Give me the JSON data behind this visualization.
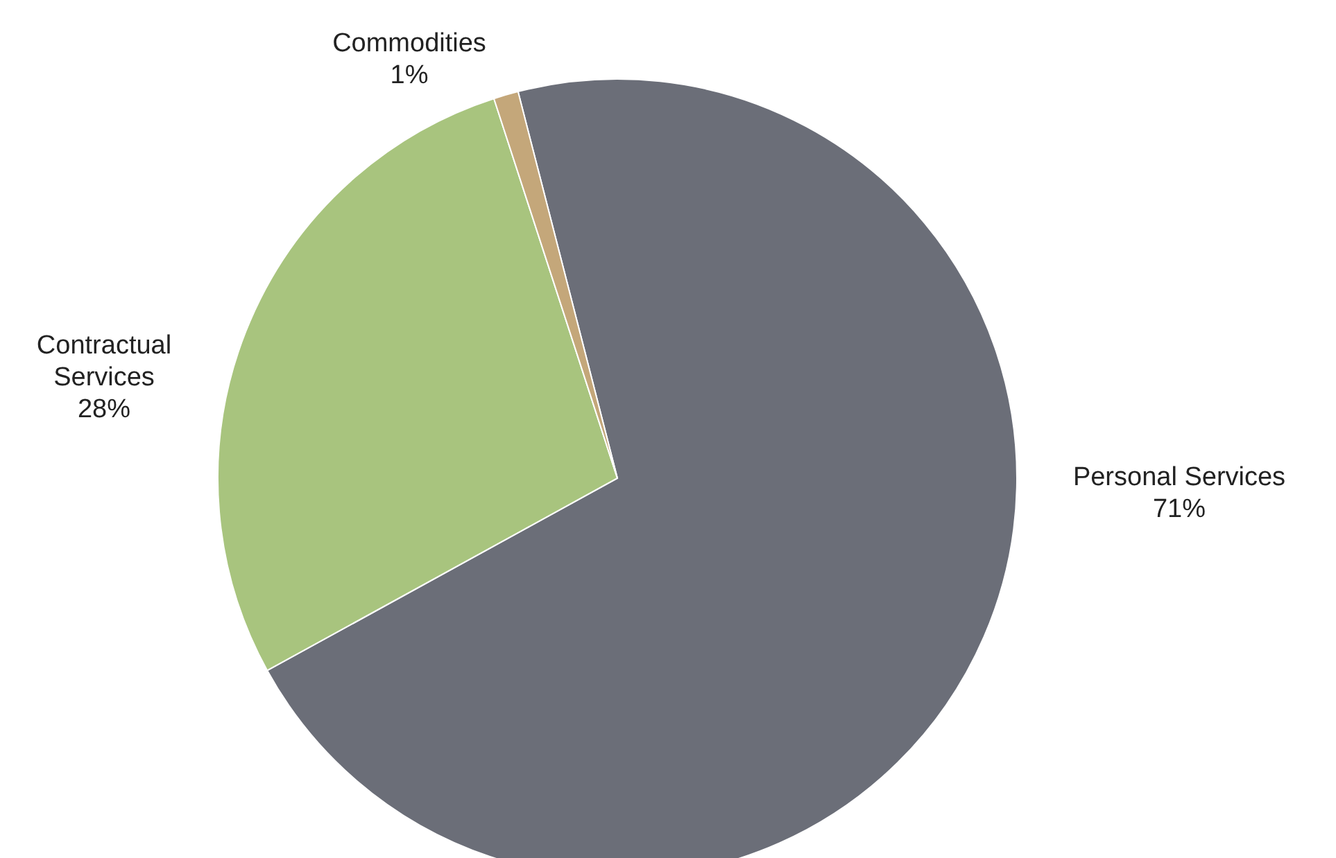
{
  "chart_data": {
    "type": "pie",
    "categories": [
      "Personal Services",
      "Contractual Services",
      "Commodities"
    ],
    "values": [
      71,
      28,
      1
    ],
    "colors": [
      "#6b6e78",
      "#a8c47e",
      "#c4a77a"
    ],
    "value_labels": [
      "71%",
      "28%",
      "1%"
    ]
  }
}
